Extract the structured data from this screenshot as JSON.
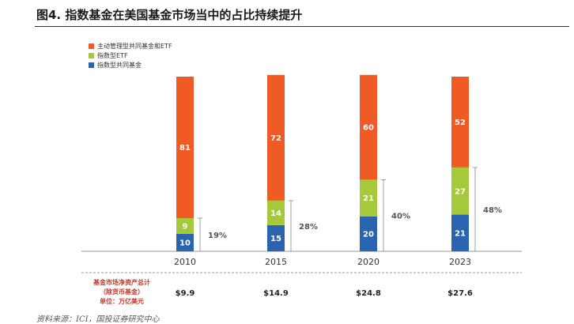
{
  "title": "图4. 指数基金在美国基金市场当中的占比持续提升",
  "source": "资料来源：ICI，国投证券研究中心",
  "colors": {
    "active": "#f05a24",
    "etf": "#a5c93a",
    "index_fund": "#2a64b0"
  },
  "chart_data": {
    "type": "bar",
    "stacked": true,
    "categories": [
      "2010",
      "2015",
      "2020",
      "2023"
    ],
    "series": [
      {
        "name": "指数型共同基金",
        "color_key": "index_fund",
        "values": [
          10,
          15,
          20,
          21
        ]
      },
      {
        "name": "指数型ETF",
        "color_key": "etf",
        "values": [
          9,
          14,
          21,
          27
        ]
      },
      {
        "name": "主动管理型共同基金和ETF",
        "color_key": "active",
        "values": [
          81,
          72,
          60,
          52
        ]
      }
    ],
    "legend_order": [
      2,
      1,
      0
    ],
    "index_share_labels": [
      "19%",
      "28%",
      "40%",
      "48%"
    ],
    "ylim": [
      0,
      100
    ],
    "legend_position": "top-left"
  },
  "assets": {
    "label_lines": [
      "基金市场净资产总计",
      "（除货币基金）",
      "单位：万亿美元"
    ],
    "values": [
      "$9.9",
      "$14.9",
      "$24.8",
      "$27.6"
    ]
  }
}
